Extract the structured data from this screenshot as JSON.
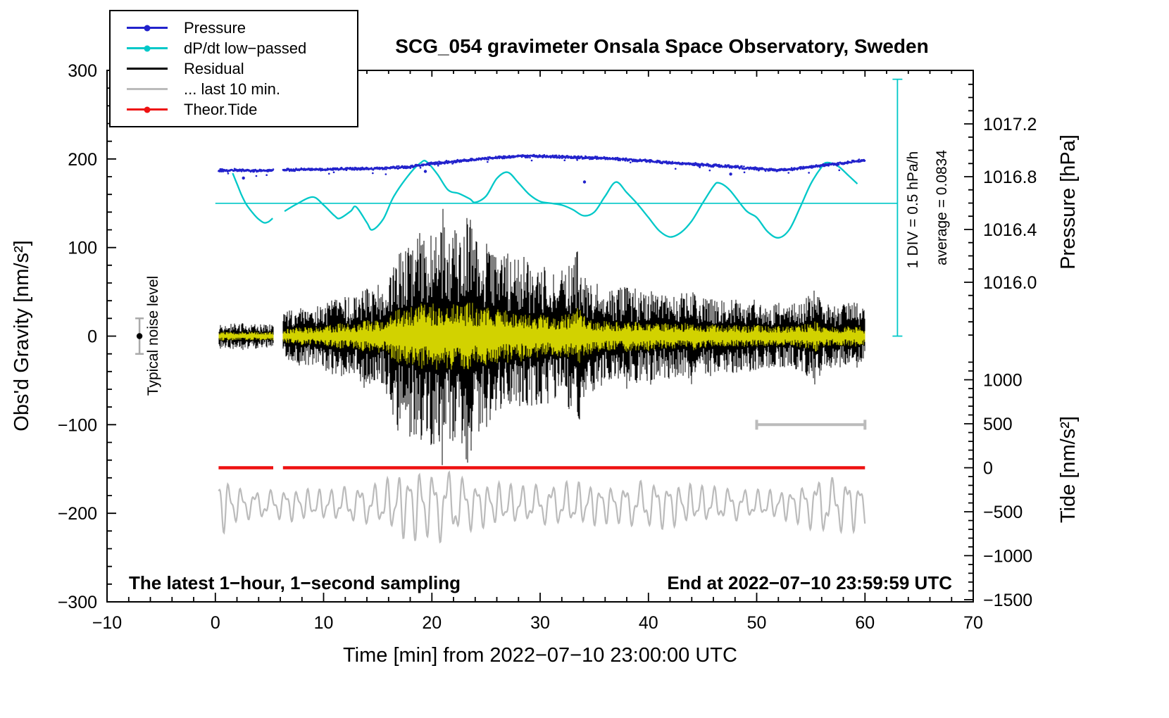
{
  "chart_data": {
    "type": "line",
    "title": "SCG_054 gravimeter Onsala Space Observatory, Sweden",
    "xlabel": "Time [min] from 2022−07−10 23:00:00 UTC",
    "x_axis": {
      "min": -10,
      "max": 70,
      "ticks": [
        -10,
        0,
        10,
        20,
        30,
        40,
        50,
        60,
        70
      ],
      "tick_labels": [
        "−10",
        "0",
        "10",
        "20",
        "30",
        "40",
        "50",
        "60",
        "70"
      ],
      "minor_step": 2
    },
    "left_axis": {
      "label": "Obs'd Gravity [nm/s²]",
      "min": -300,
      "max": 300,
      "ticks": [
        -300,
        -200,
        -100,
        0,
        100,
        200,
        300
      ],
      "tick_labels": [
        "−300",
        "−200",
        "−100",
        "0",
        "100",
        "200",
        "300"
      ],
      "minor_step": 20
    },
    "pressure_axis": {
      "label": "Pressure [hPa]",
      "ticks": [
        1016.0,
        1016.4,
        1016.8,
        1017.2
      ],
      "tick_labels": [
        "1016.0",
        "1016.4",
        "1016.8",
        "1017.2"
      ],
      "gravity_at_1016_8": 180,
      "gravity_per_hpa": 149,
      "minor_step": 0.1,
      "tick_region_gravity": [
        0,
        299
      ]
    },
    "tide_axis": {
      "label": "Tide [nm/s²]",
      "ticks": [
        -1500,
        -1000,
        -500,
        0,
        500,
        1000
      ],
      "tick_labels": [
        "−1500",
        "−1000",
        "−500",
        "0",
        "500",
        "1000"
      ],
      "gravity_at_zero": -148.6,
      "gravity_per_unit": 0.0993,
      "minor_step": 100,
      "tick_region_gravity": [
        -299,
        -25
      ]
    },
    "legend": [
      {
        "label": "Pressure",
        "color": "#2222cc",
        "marker": "dot-line"
      },
      {
        "label": "dP/dt low−passed",
        "color": "#00c8c8",
        "marker": "dot-line"
      },
      {
        "label": "Residual",
        "color": "#000000",
        "marker": "line"
      },
      {
        "label": "... last 10 min.",
        "color": "#bbbbbb",
        "marker": "line"
      },
      {
        "label": "Theor.Tide",
        "color": "#ee1111",
        "marker": "dot-line"
      }
    ],
    "annotations": {
      "noise_label": "Typical noise level",
      "div_label": "1 DIV = 0.5 hPa/h",
      "average_label": "average = 0.0834",
      "sampling_label": "The latest 1−hour, 1−second sampling",
      "end_label": "End at 2022−07−10 23:59:59 UTC"
    },
    "gap_x": [
      5.35,
      6.25
    ],
    "colors": {
      "pressure": "#2222cc",
      "dpdt": "#00c8c8",
      "residual": "#000000",
      "residual_overlay": "#d2d200",
      "last10": "#bbbbbb",
      "tide": "#ee1111",
      "frame": "#000000"
    },
    "series": {
      "pressure_hpa": [
        [
          0,
          1016.845
        ],
        [
          2,
          1016.85
        ],
        [
          4,
          1016.845
        ],
        [
          6,
          1016.85
        ],
        [
          8,
          1016.855
        ],
        [
          10,
          1016.855
        ],
        [
          12,
          1016.86
        ],
        [
          14,
          1016.86
        ],
        [
          16,
          1016.865
        ],
        [
          18,
          1016.875
        ],
        [
          19,
          1016.89
        ],
        [
          20,
          1016.9
        ],
        [
          22,
          1016.915
        ],
        [
          24,
          1016.93
        ],
        [
          26,
          1016.945
        ],
        [
          28,
          1016.955
        ],
        [
          30,
          1016.955
        ],
        [
          32,
          1016.95
        ],
        [
          34,
          1016.945
        ],
        [
          36,
          1016.94
        ],
        [
          38,
          1016.93
        ],
        [
          40,
          1016.92
        ],
        [
          42,
          1016.905
        ],
        [
          44,
          1016.895
        ],
        [
          46,
          1016.885
        ],
        [
          48,
          1016.875
        ],
        [
          50,
          1016.86
        ],
        [
          51,
          1016.85
        ],
        [
          52,
          1016.85
        ],
        [
          53,
          1016.855
        ],
        [
          54,
          1016.865
        ],
        [
          55,
          1016.875
        ],
        [
          56,
          1016.885
        ],
        [
          57,
          1016.895
        ],
        [
          58,
          1016.905
        ],
        [
          59,
          1016.915
        ],
        [
          60,
          1016.925
        ]
      ],
      "pressure_outliers": [
        [
          2.6,
          1016.79
        ],
        [
          19.4,
          1016.84
        ],
        [
          34.1,
          1016.76
        ],
        [
          47.6,
          1016.82
        ]
      ],
      "dpdt_gravity": {
        "seg1": [
          [
            1.6,
            184
          ],
          [
            2.0,
            172
          ],
          [
            2.4,
            160
          ],
          [
            2.8,
            150
          ],
          [
            3.2,
            143
          ],
          [
            3.6,
            137
          ],
          [
            4.0,
            132
          ],
          [
            4.5,
            128
          ],
          [
            4.9,
            129
          ],
          [
            5.3,
            133
          ]
        ],
        "seg2": [
          [
            6.4,
            141
          ],
          [
            7.5,
            149
          ],
          [
            9,
            157
          ],
          [
            10,
            148
          ],
          [
            11,
            136
          ],
          [
            11.5,
            133
          ],
          [
            12.5,
            141
          ],
          [
            13,
            146
          ],
          [
            14,
            128
          ],
          [
            14.5,
            120
          ],
          [
            15.5,
            132
          ],
          [
            16.5,
            158
          ],
          [
            18,
            184
          ],
          [
            19,
            196
          ],
          [
            19.5,
            197
          ],
          [
            20.5,
            183
          ],
          [
            21.5,
            165
          ],
          [
            22.5,
            161
          ],
          [
            23.5,
            155
          ],
          [
            24,
            151
          ],
          [
            25,
            158
          ],
          [
            26,
            178
          ],
          [
            27,
            185
          ],
          [
            28,
            173
          ],
          [
            29,
            160
          ],
          [
            30,
            152
          ],
          [
            31,
            150
          ],
          [
            32,
            148
          ],
          [
            33,
            143
          ],
          [
            34,
            136
          ],
          [
            35,
            140
          ],
          [
            36,
            158
          ],
          [
            37,
            174
          ],
          [
            38,
            162
          ],
          [
            39,
            149
          ],
          [
            40,
            134
          ],
          [
            41,
            119
          ],
          [
            42,
            112
          ],
          [
            43,
            117
          ],
          [
            44,
            130
          ],
          [
            45,
            150
          ],
          [
            46,
            169
          ],
          [
            46.5,
            173
          ],
          [
            47.5,
            165
          ],
          [
            49,
            142
          ],
          [
            50,
            134
          ],
          [
            51,
            118
          ],
          [
            52,
            111
          ],
          [
            53,
            120
          ],
          [
            54,
            145
          ],
          [
            55,
            172
          ],
          [
            56,
            191
          ],
          [
            56.5,
            196
          ],
          [
            57.5,
            192
          ],
          [
            58.5,
            181
          ],
          [
            59.3,
            172
          ]
        ]
      },
      "dpdt_ref": {
        "gravity": 150,
        "x_span": [
          0,
          63
        ]
      },
      "dpdt_scalebar": {
        "x": 63,
        "gravity_span": [
          0,
          290
        ]
      },
      "residual_envelope": [
        [
          0.3,
          13
        ],
        [
          2,
          15
        ],
        [
          4,
          14
        ],
        [
          5.3,
          13
        ],
        [
          6.4,
          26
        ],
        [
          7,
          30
        ],
        [
          8,
          33
        ],
        [
          9,
          30
        ],
        [
          10,
          36
        ],
        [
          11,
          42
        ],
        [
          12,
          48
        ],
        [
          12.5,
          42
        ],
        [
          13,
          45
        ],
        [
          13.5,
          52
        ],
        [
          14,
          58
        ],
        [
          14.5,
          50
        ],
        [
          15,
          62
        ],
        [
          15.5,
          55
        ],
        [
          16,
          68
        ],
        [
          16.5,
          92
        ],
        [
          17,
          108
        ],
        [
          17.5,
          96
        ],
        [
          18,
          115
        ],
        [
          18.5,
          102
        ],
        [
          19,
          122
        ],
        [
          19.5,
          112
        ],
        [
          20,
          128
        ],
        [
          20.5,
          118
        ],
        [
          21,
          138
        ],
        [
          21.5,
          112
        ],
        [
          22,
          124
        ],
        [
          22.5,
          108
        ],
        [
          23,
          138
        ],
        [
          23.5,
          150
        ],
        [
          24,
          112
        ],
        [
          24.5,
          98
        ],
        [
          25,
          106
        ],
        [
          25.5,
          92
        ],
        [
          26,
          100
        ],
        [
          26.5,
          88
        ],
        [
          27,
          95
        ],
        [
          27.5,
          85
        ],
        [
          28,
          92
        ],
        [
          29,
          82
        ],
        [
          30,
          78
        ],
        [
          31,
          70
        ],
        [
          32,
          74
        ],
        [
          33,
          82
        ],
        [
          33.5,
          105
        ],
        [
          34,
          76
        ],
        [
          34.5,
          64
        ],
        [
          35,
          62
        ],
        [
          36,
          56
        ],
        [
          37,
          54
        ],
        [
          38,
          56
        ],
        [
          39,
          50
        ],
        [
          40,
          54
        ],
        [
          41,
          46
        ],
        [
          42,
          48
        ],
        [
          43,
          45
        ],
        [
          44,
          52
        ],
        [
          45,
          42
        ],
        [
          46,
          44
        ],
        [
          47,
          40
        ],
        [
          48,
          42
        ],
        [
          49,
          37
        ],
        [
          50,
          40
        ],
        [
          51,
          35
        ],
        [
          52,
          37
        ],
        [
          53,
          34
        ],
        [
          54,
          40
        ],
        [
          55,
          48
        ],
        [
          55.5,
          58
        ],
        [
          56,
          38
        ],
        [
          57,
          33
        ],
        [
          58,
          36
        ],
        [
          59,
          38
        ],
        [
          60,
          30
        ]
      ],
      "yellow_envelope_scale": 0.32,
      "yellow_max": 38,
      "yellow_min": 5,
      "tide_theor": {
        "value": 0,
        "x_span": [
          0.3,
          60
        ]
      },
      "last10": {
        "baseline_gravity": -190,
        "x_span": [
          0.3,
          60
        ],
        "period_min": 1.18,
        "amp_envelope": [
          [
            0.3,
            36
          ],
          [
            1.5,
            22
          ],
          [
            3,
            16
          ],
          [
            5,
            15
          ],
          [
            7,
            18
          ],
          [
            9,
            16
          ],
          [
            11,
            17
          ],
          [
            13,
            20
          ],
          [
            15,
            22
          ],
          [
            16,
            28
          ],
          [
            17,
            34
          ],
          [
            18,
            40
          ],
          [
            19,
            38
          ],
          [
            20,
            36
          ],
          [
            21,
            40
          ],
          [
            22,
            34
          ],
          [
            23,
            30
          ],
          [
            24,
            26
          ],
          [
            25,
            24
          ],
          [
            27,
            22
          ],
          [
            29,
            20
          ],
          [
            31,
            22
          ],
          [
            33,
            24
          ],
          [
            35,
            22
          ],
          [
            37,
            20
          ],
          [
            39,
            24
          ],
          [
            41,
            26
          ],
          [
            43,
            22
          ],
          [
            45,
            20
          ],
          [
            47,
            18
          ],
          [
            49,
            16
          ],
          [
            51,
            15
          ],
          [
            53,
            17
          ],
          [
            55,
            26
          ],
          [
            56,
            32
          ],
          [
            57,
            28
          ],
          [
            58,
            30
          ],
          [
            59,
            28
          ],
          [
            60,
            24
          ]
        ]
      },
      "last10_bar": {
        "x_span": [
          50,
          60
        ],
        "gravity": -100
      },
      "noise_marker": {
        "x": -7,
        "gravity": 0,
        "halfwidth_gravity": 20
      }
    }
  }
}
